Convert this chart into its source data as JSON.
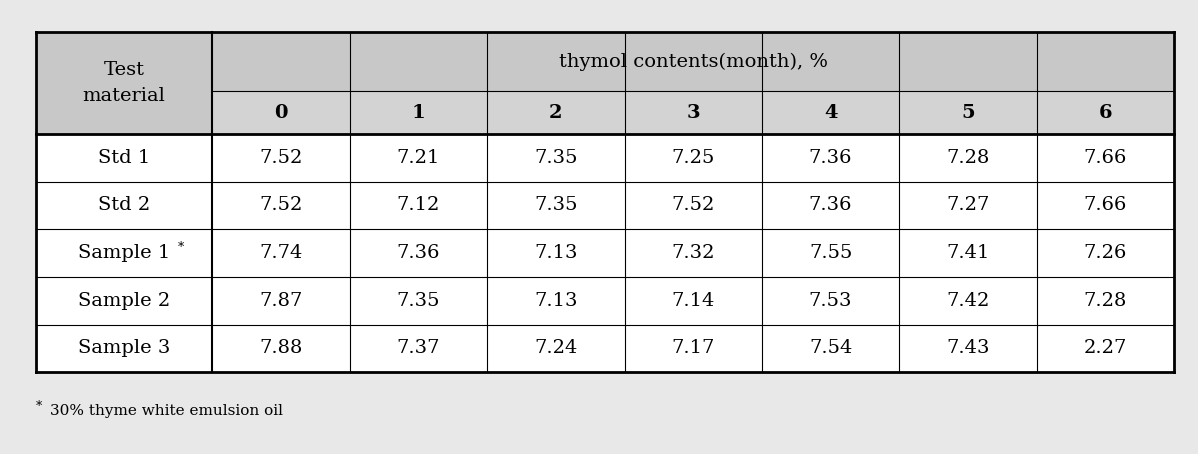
{
  "header_top": "thymol contents(month), %",
  "header_left": "Test\nmaterial",
  "col_months": [
    "0",
    "1",
    "2",
    "3",
    "4",
    "5",
    "6"
  ],
  "rows": [
    {
      "label": "Std 1",
      "superscript": false,
      "values": [
        "7.52",
        "7.21",
        "7.35",
        "7.25",
        "7.36",
        "7.28",
        "7.66"
      ]
    },
    {
      "label": "Std 2",
      "superscript": false,
      "values": [
        "7.52",
        "7.12",
        "7.35",
        "7.52",
        "7.36",
        "7.27",
        "7.66"
      ]
    },
    {
      "label": "Sample 1",
      "superscript": true,
      "values": [
        "7.74",
        "7.36",
        "7.13",
        "7.32",
        "7.55",
        "7.41",
        "7.26"
      ]
    },
    {
      "label": "Sample 2",
      "superscript": false,
      "values": [
        "7.87",
        "7.35",
        "7.13",
        "7.14",
        "7.53",
        "7.42",
        "7.28"
      ]
    },
    {
      "label": "Sample 3",
      "superscript": false,
      "values": [
        "7.88",
        "7.37",
        "7.24",
        "7.17",
        "7.54",
        "7.43",
        "2.27"
      ]
    }
  ],
  "footnote_star": "*",
  "footnote_text": "30% thyme white emulsion oil",
  "header_bg": "#c8c8c8",
  "subheader_bg": "#d3d3d3",
  "cell_bg": "#ffffff",
  "fig_bg": "#e8e8e8",
  "border_color": "#000000",
  "text_color": "#000000",
  "figsize": [
    11.98,
    4.54
  ],
  "dpi": 100
}
